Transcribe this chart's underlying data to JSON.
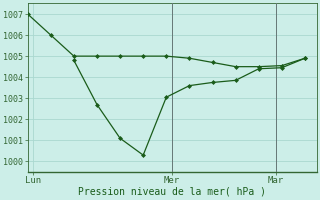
{
  "xlabel": "Pression niveau de la mer( hPa )",
  "background_color": "#cceee8",
  "grid_color": "#aad8d0",
  "line_color": "#1a5c1a",
  "ylim": [
    999.5,
    1007.5
  ],
  "yticks": [
    1000,
    1001,
    1002,
    1003,
    1004,
    1005,
    1006,
    1007
  ],
  "line1_x": [
    0,
    2,
    4,
    6,
    8,
    10,
    12,
    14,
    16,
    18,
    20,
    22,
    24
  ],
  "line1_y": [
    1007.0,
    1006.0,
    1005.0,
    1005.0,
    1005.0,
    1005.0,
    1005.0,
    1004.9,
    1004.7,
    1004.5,
    1004.5,
    1004.55,
    1004.9
  ],
  "line2_x": [
    4,
    6,
    8,
    10,
    12,
    14,
    16,
    18,
    20,
    22,
    24
  ],
  "line2_y": [
    1004.8,
    1002.7,
    1001.1,
    1000.3,
    1003.05,
    1003.6,
    1003.75,
    1003.85,
    1004.4,
    1004.45,
    1004.9
  ],
  "vline1_x": 12.5,
  "vline2_x": 21.5,
  "xtick_positions": [
    0.5,
    12.5,
    21.5
  ],
  "xtick_labels": [
    "Lun",
    "Mer",
    "Mar"
  ],
  "xlim": [
    0,
    25
  ],
  "figsize": [
    3.2,
    2.0
  ],
  "dpi": 100,
  "spine_color": "#336633",
  "tick_color": "#336633",
  "label_color": "#1a5c1a"
}
